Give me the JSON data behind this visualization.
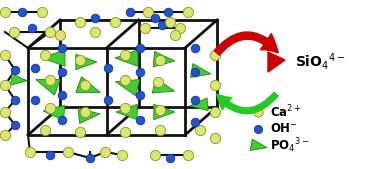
{
  "fig_width": 3.78,
  "fig_height": 1.69,
  "dpi": 100,
  "bg_color": "#ffffff",
  "ca_color": "#d8e870",
  "ca_edge_color": "#909020",
  "oh_color": "#2255cc",
  "oh_edge_color": "#1133aa",
  "po4_color": "#44cc33",
  "po4_edge_color": "#228811",
  "arrow_red": "#cc0000",
  "arrow_green": "#22cc22",
  "bond_color": "#111111",
  "bond_lw": 1.5,
  "legend_ca_label": "Ca$^{2+}$",
  "legend_oh_label": "OH$^{-}$",
  "legend_po4_label": "PO$_4$$^{3-}$",
  "sio4_label": "SiO$_4$$^{4-}$",
  "text_fontsize": 8.5
}
